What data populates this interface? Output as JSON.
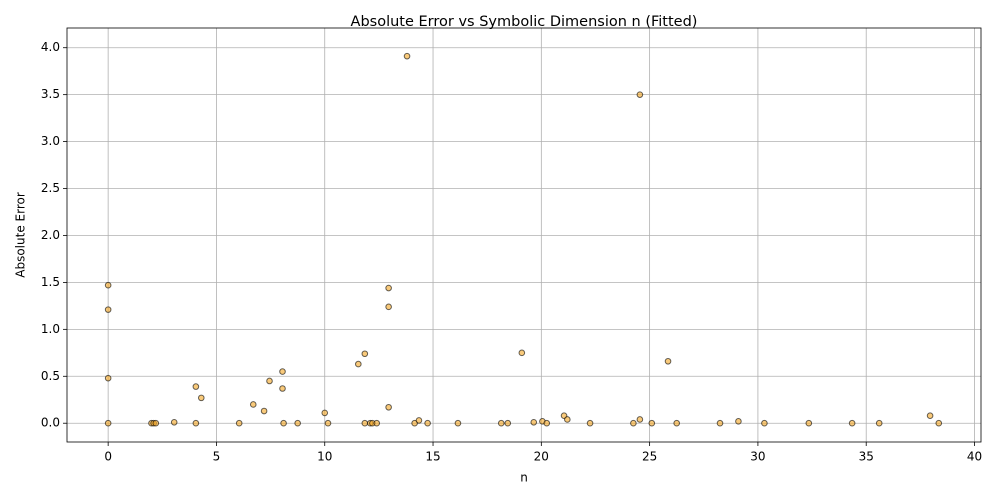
{
  "chart_data": {
    "type": "scatter",
    "title": "Absolute Error vs Symbolic Dimension n (Fitted)",
    "x_label": "n",
    "y_label": "Absolute Error",
    "x": [
      0,
      0,
      0,
      0,
      2.0,
      2.1,
      2.2,
      3.05,
      4.05,
      4.05,
      4.3,
      6.05,
      6.7,
      7.2,
      7.45,
      8.05,
      8.05,
      8.1,
      8.75,
      10.0,
      10.15,
      11.55,
      11.85,
      11.85,
      12.1,
      12.2,
      12.4,
      12.95,
      12.95,
      12.95,
      13.8,
      14.15,
      14.35,
      14.75,
      16.15,
      18.15,
      18.45,
      19.1,
      19.65,
      20.05,
      20.25,
      21.05,
      21.2,
      22.25,
      24.25,
      24.55,
      24.55,
      25.1,
      25.85,
      26.25,
      28.25,
      29.1,
      30.3,
      32.35,
      34.35,
      35.6,
      37.95,
      38.35
    ],
    "values": [
      0,
      0.48,
      1.21,
      1.47,
      0,
      0,
      0,
      0.01,
      0,
      0.39,
      0.27,
      0,
      0.2,
      0.13,
      0.45,
      0.55,
      0.37,
      0,
      0,
      0.11,
      0,
      0.63,
      0.74,
      0,
      0,
      0,
      0,
      1.44,
      1.24,
      0.17,
      3.91,
      0,
      0.03,
      0,
      0,
      0,
      0,
      0.75,
      0.01,
      0.02,
      0,
      0.08,
      0.04,
      0,
      0,
      3.5,
      0.04,
      0,
      0.66,
      0,
      0,
      0.02,
      0,
      0,
      0,
      0,
      0.08,
      0
    ],
    "color": "#f5a623",
    "edge_color": "#000000",
    "alpha": 0.6,
    "xlim": [
      -1.9,
      40.3
    ],
    "ylim": [
      -0.2,
      4.21
    ],
    "xticks": [
      0,
      5,
      10,
      15,
      20,
      25,
      30,
      35,
      40
    ],
    "yticks": [
      {
        "value": 0,
        "label": "0.0"
      },
      0.5,
      {
        "value": 1,
        "label": "1.0"
      },
      1.5,
      {
        "value": 2,
        "label": "2.0"
      },
      2.5,
      {
        "value": 3,
        "label": "3.0"
      },
      3.5,
      {
        "value": 4,
        "label": "4.0"
      }
    ],
    "grid": true
  }
}
